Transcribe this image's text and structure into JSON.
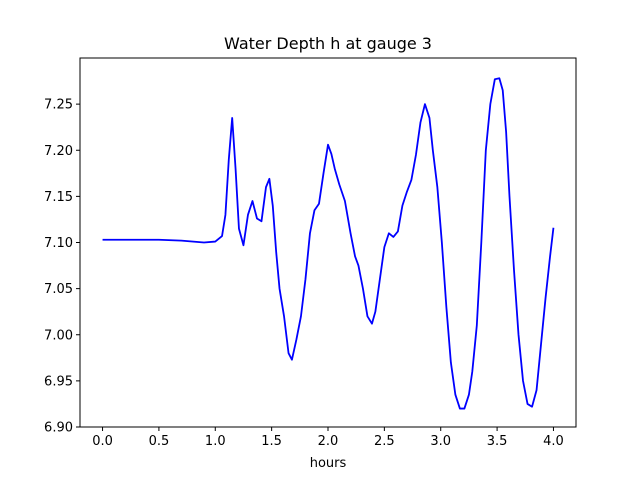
{
  "chart_data": {
    "type": "line",
    "title": "Water Depth h at gauge 3",
    "xlabel": "hours",
    "ylabel": "",
    "xlim": [
      -0.2,
      4.2
    ],
    "ylim": [
      6.9,
      7.3
    ],
    "xticks": [
      0.0,
      0.5,
      1.0,
      1.5,
      2.0,
      2.5,
      3.0,
      3.5,
      4.0
    ],
    "xtick_labels": [
      "0.0",
      "0.5",
      "1.0",
      "1.5",
      "2.0",
      "2.5",
      "3.0",
      "3.5",
      "4.0"
    ],
    "yticks": [
      6.9,
      6.95,
      7.0,
      7.05,
      7.1,
      7.15,
      7.2,
      7.25
    ],
    "ytick_labels": [
      "6.90",
      "6.95",
      "7.00",
      "7.05",
      "7.10",
      "7.15",
      "7.20",
      "7.25"
    ],
    "grid": false,
    "series": [
      {
        "color": "#0000ff",
        "x": [
          0.0,
          0.3,
          0.5,
          0.7,
          0.9,
          1.0,
          1.06,
          1.09,
          1.12,
          1.15,
          1.18,
          1.21,
          1.25,
          1.29,
          1.33,
          1.37,
          1.41,
          1.45,
          1.48,
          1.51,
          1.54,
          1.57,
          1.61,
          1.65,
          1.68,
          1.72,
          1.76,
          1.8,
          1.84,
          1.88,
          1.92,
          1.96,
          2.0,
          2.03,
          2.06,
          2.1,
          2.15,
          2.2,
          2.24,
          2.27,
          2.31,
          2.35,
          2.39,
          2.42,
          2.46,
          2.5,
          2.54,
          2.58,
          2.62,
          2.66,
          2.7,
          2.74,
          2.78,
          2.82,
          2.86,
          2.9,
          2.93,
          2.97,
          3.01,
          3.05,
          3.09,
          3.13,
          3.17,
          3.21,
          3.25,
          3.28,
          3.32,
          3.36,
          3.4,
          3.44,
          3.48,
          3.52,
          3.55,
          3.58,
          3.61,
          3.65,
          3.69,
          3.73,
          3.77,
          3.81,
          3.85,
          3.89,
          3.93,
          3.97,
          4.0
        ],
        "y": [
          7.103,
          7.103,
          7.103,
          7.102,
          7.1,
          7.101,
          7.107,
          7.13,
          7.19,
          7.235,
          7.18,
          7.115,
          7.097,
          7.13,
          7.145,
          7.126,
          7.123,
          7.16,
          7.169,
          7.14,
          7.09,
          7.05,
          7.02,
          6.98,
          6.973,
          6.995,
          7.02,
          7.06,
          7.11,
          7.135,
          7.142,
          7.175,
          7.206,
          7.196,
          7.18,
          7.163,
          7.145,
          7.11,
          7.085,
          7.075,
          7.05,
          7.02,
          7.012,
          7.025,
          7.06,
          7.095,
          7.11,
          7.106,
          7.112,
          7.14,
          7.155,
          7.168,
          7.195,
          7.23,
          7.25,
          7.235,
          7.2,
          7.16,
          7.1,
          7.03,
          6.97,
          6.935,
          6.92,
          6.92,
          6.935,
          6.96,
          7.01,
          7.1,
          7.2,
          7.25,
          7.277,
          7.278,
          7.265,
          7.22,
          7.15,
          7.07,
          7.0,
          6.95,
          6.925,
          6.922,
          6.94,
          6.99,
          7.04,
          7.085,
          7.116
        ]
      }
    ]
  }
}
